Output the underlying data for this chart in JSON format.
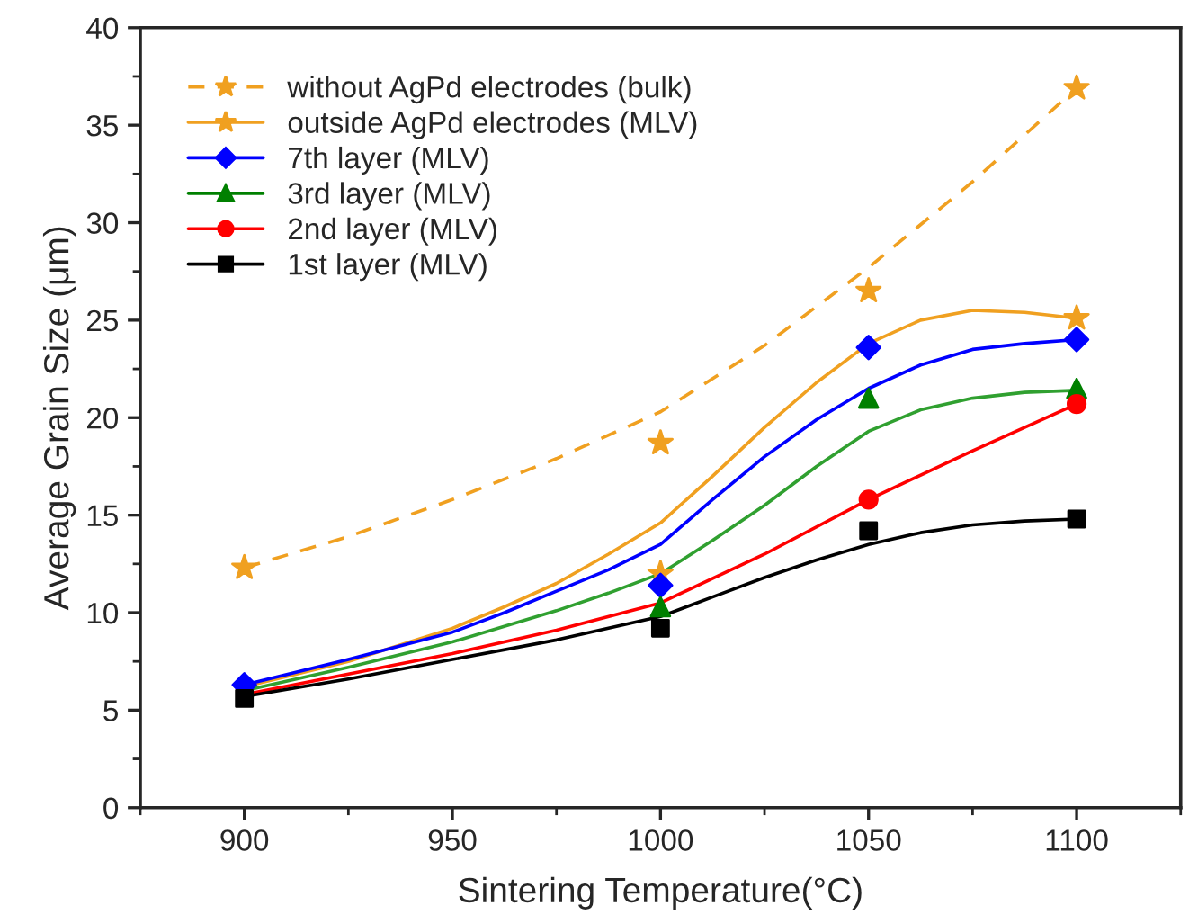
{
  "chart_data": {
    "type": "scatter",
    "xlabel": "Sintering Temperature(°C)",
    "ylabel": "Average Grain Size (μm)",
    "x": [
      900,
      1000,
      1050,
      1100
    ],
    "series": [
      {
        "name": "without AgPd electrodes (bulk)",
        "color": "#f0a020",
        "marker": "star",
        "values": [
          12.3,
          18.7,
          null,
          36.9
        ]
      },
      {
        "type": "line",
        "color": "#f0a020",
        "line_style": "dashed",
        "x": [
          900,
          925,
          950,
          975,
          1000,
          1025,
          1050,
          1075,
          1100
        ],
        "values": [
          12.3,
          13.9,
          15.8,
          17.9,
          20.3,
          23.7,
          27.7,
          32.1,
          36.9
        ]
      },
      {
        "name": "outside AgPd electrodes (MLV)",
        "color": "#f0a020",
        "marker": "star",
        "values": [
          null,
          12.0,
          26.5,
          25.1
        ]
      },
      {
        "type": "line",
        "color": "#f0a020",
        "line_style": "solid",
        "x": [
          900,
          925,
          950,
          962.5,
          975,
          987.5,
          1000,
          1012.5,
          1025,
          1037.5,
          1050,
          1062.5,
          1075,
          1087.5,
          1100
        ],
        "values": [
          6.2,
          7.5,
          9.2,
          10.3,
          11.5,
          13.0,
          14.6,
          17.0,
          19.5,
          21.8,
          23.8,
          25.0,
          25.5,
          25.4,
          25.1
        ]
      },
      {
        "name": "7th layer (MLV)",
        "color": "#0000ff",
        "marker": "diamond",
        "values": [
          6.3,
          11.4,
          23.6,
          24.0
        ]
      },
      {
        "type": "line",
        "color": "#0000ff",
        "line_style": "solid",
        "x": [
          900,
          925,
          950,
          962.5,
          975,
          987.5,
          1000,
          1012.5,
          1025,
          1037.5,
          1050,
          1062.5,
          1075,
          1087.5,
          1100
        ],
        "values": [
          6.3,
          7.6,
          9.0,
          10.0,
          11.1,
          12.2,
          13.5,
          15.8,
          18.0,
          19.9,
          21.5,
          22.7,
          23.5,
          23.8,
          24.0
        ]
      },
      {
        "name": "3rd layer (MLV)",
        "color": "#008000",
        "marker": "triangle",
        "values": [
          null,
          10.3,
          21.0,
          21.5
        ]
      },
      {
        "type": "line",
        "color": "#30a030",
        "line_style": "solid",
        "x": [
          900,
          925,
          950,
          975,
          987.5,
          1000,
          1012.5,
          1025,
          1037.5,
          1050,
          1062.5,
          1075,
          1087.5,
          1100
        ],
        "values": [
          6.0,
          7.2,
          8.5,
          10.1,
          11.0,
          12.0,
          13.7,
          15.5,
          17.5,
          19.3,
          20.4,
          21.0,
          21.3,
          21.4
        ]
      },
      {
        "name": "2nd layer (MLV)",
        "color": "#ff0000",
        "marker": "circle",
        "values": [
          null,
          null,
          15.8,
          20.7
        ]
      },
      {
        "type": "line",
        "color": "#ff0000",
        "line_style": "solid",
        "x": [
          900,
          950,
          975,
          1000,
          1025,
          1050,
          1075,
          1100
        ],
        "values": [
          5.8,
          7.9,
          9.1,
          10.5,
          13.0,
          15.8,
          18.3,
          20.7
        ]
      },
      {
        "name": "1st layer (MLV)",
        "color": "#000000",
        "marker": "square",
        "values": [
          5.6,
          9.2,
          14.2,
          14.8
        ]
      },
      {
        "type": "line",
        "color": "#000000",
        "line_style": "solid",
        "x": [
          900,
          925,
          950,
          975,
          1000,
          1012.5,
          1025,
          1037.5,
          1050,
          1062.5,
          1075,
          1087.5,
          1100
        ],
        "values": [
          5.7,
          6.6,
          7.6,
          8.6,
          9.8,
          10.8,
          11.8,
          12.7,
          13.5,
          14.1,
          14.5,
          14.7,
          14.8
        ]
      }
    ],
    "xlim": [
      875,
      1125
    ],
    "xticks": [
      900,
      950,
      1000,
      1050,
      1100
    ],
    "ylim": [
      0,
      40
    ],
    "yticks": [
      0,
      5,
      10,
      15,
      20,
      25,
      30,
      35,
      40
    ],
    "grid": false,
    "legend": "top left"
  }
}
